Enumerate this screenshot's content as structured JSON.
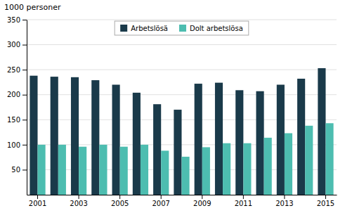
{
  "chart_data": {
    "type": "bar",
    "y_label": "1000 personer",
    "categories": [
      "2001",
      null,
      "2003",
      null,
      "2005",
      null,
      "2007",
      null,
      "2009",
      null,
      "2011",
      null,
      "2013",
      null,
      "2015"
    ],
    "series": [
      {
        "name": "Arbetslösä",
        "color": "#1a3a4a",
        "values": [
          238,
          236,
          235,
          229,
          220,
          204,
          181,
          170,
          222,
          224,
          209,
          207,
          220,
          232,
          253
        ]
      },
      {
        "name": "Dolt arbetslösa",
        "color": "#4dbdb0",
        "values": [
          100,
          100,
          96,
          100,
          96,
          100,
          88,
          76,
          95,
          103,
          103,
          114,
          123,
          138,
          143
        ]
      }
    ],
    "ylim": [
      0,
      350
    ],
    "yticks": [
      50,
      100,
      150,
      200,
      250,
      300,
      350
    ],
    "grid": true,
    "legend": "top"
  }
}
